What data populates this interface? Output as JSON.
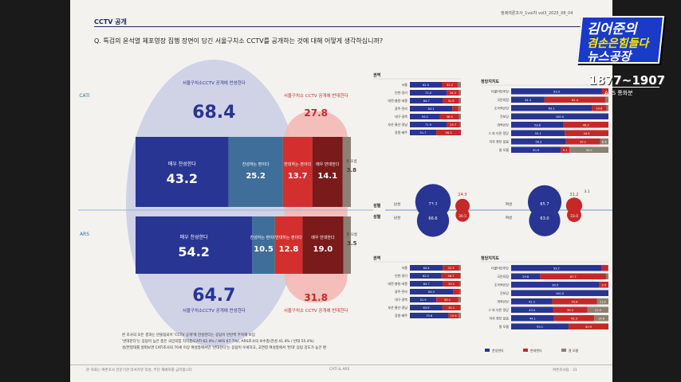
{
  "header": {
    "title": "CCTV 공개",
    "right_text": "정례여론조사_1vol차   vol3_2025_08_04",
    "question": "Q. 특검의 윤석열 체포영장 집행 장면이 담긴 서울구치소 CCTV를 공개하는 것에 대해 어떻게 생각하십니까?"
  },
  "footer": {
    "left": "본 자료는 여론조사 전문기관 리서치뷰 작성, 무단 재배포를 금지합니다",
    "mid": "CATI & ARS",
    "right": "여론조사팀  ·  31"
  },
  "notes": [
    "본 조사의 모든 결과는 반올림되어 'CCTV 공개'에 찬성한다는 응답이 반반씩 주목해 보임",
    "'반대한다'는 응답이 높은 층은 국민의힘 지지층(CATI 62.4% / ARS 67.7%), ARS조사의 보수층(찬성 41.4% / 반대 55.4%)",
    "성/연령대를 살펴보면 CATI조사의 70세 이상 여성층에서만 '반대한다'는 응답이 우세하고, 고연령 여성층에서 '반대' 응답 강도가 높은 편"
  ],
  "logo": {
    "line1": "김어준의",
    "line2": "겸손은힘들다",
    "line3": "뉴스공장",
    "years": "1877~1907",
    "sub": "ARS 통화분"
  },
  "chart_data": [
    {
      "type": "bar",
      "title": "CCTV 공개 찬반 (CATI / ARS)",
      "side_labels": {
        "cati": "CATI",
        "ars": "ARS"
      },
      "summary": {
        "cati_support": {
          "label": "서울구치소CCTV 공개에 찬성한다",
          "value": 68.4
        },
        "cati_oppose": {
          "label": "서울구치소 CCTV 공개에 반대한다",
          "value": 27.8
        },
        "ars_support": {
          "label": "서울구치소CCTV 공개에 찬성한다",
          "value": 64.7
        },
        "ars_oppose": {
          "label": "서울구치소 CCTV 공개에 반대한다",
          "value": 31.8
        }
      },
      "categories": [
        "매우 찬성한다",
        "찬성하는 편이다",
        "반대하는 편이다",
        "매우 반대한다",
        "잘 모름"
      ],
      "series": [
        {
          "name": "CATI",
          "values": [
            43.2,
            25.2,
            13.7,
            14.1,
            3.8
          ]
        },
        {
          "name": "ARS",
          "values": [
            54.2,
            10.5,
            12.8,
            19.0,
            3.5
          ]
        }
      ],
      "colors": [
        "#283593",
        "#3f6e9a",
        "#d32f2f",
        "#7b1a1a",
        "#8d7f72"
      ]
    },
    {
      "type": "bar",
      "title": "성별",
      "label": "성별",
      "groups": [
        {
          "name": "남성",
          "cati": [
            73.2,
            24.3
          ],
          "ars": [
            66.6,
            30.5
          ]
        },
        {
          "name": "여성",
          "cati": [
            65.7,
            31.2,
            3.1
          ],
          "ars": [
            63.0,
            33.0
          ]
        }
      ]
    },
    {
      "type": "bar",
      "title": "권역 (CATI)",
      "label": "권역",
      "categories": [
        "서울",
        "인천·경기",
        "대전·충청·세종",
        "광주·전라",
        "대구·경북",
        "부산·울산·경남",
        "강원·제주"
      ],
      "series": [
        {
          "name": "찬성",
          "values": [
            62.5,
            72.0,
            64.7,
            83.1,
            59.2,
            71.9,
            51.7
          ]
        },
        {
          "name": "반대",
          "values": [
            31.2,
            24.3,
            31.8,
            11.8,
            36.9,
            25.7,
            48.3
          ]
        },
        {
          "name": "잘 모름",
          "values": [
            6.3,
            3.7,
            3.5,
            5.2,
            3.9,
            2.4,
            0.0
          ]
        }
      ]
    },
    {
      "type": "bar",
      "title": "정당지지도 (CATI)",
      "label": "정당지지도",
      "categories": [
        "더불어민주당",
        "국민의힘",
        "조국혁신당",
        "진보당",
        "개혁신당",
        "그 외 다른 정당",
        "지지 정당 없음",
        "잘 모름"
      ],
      "series": [
        {
          "name": "찬성",
          "values": [
            93.4,
            34.3,
            83.1,
            100.0,
            53.8,
            55.1,
            56.3,
            50.9
          ]
        },
        {
          "name": "반대",
          "values": [
            6.6,
            62.4,
            14.8,
            0.0,
            46.2,
            44.9,
            35.1,
            9.1
          ]
        },
        {
          "name": "잘 모름",
          "values": [
            0.0,
            3.3,
            2.1,
            0.0,
            0.0,
            0.0,
            8.6,
            40.0
          ]
        }
      ]
    },
    {
      "type": "bar",
      "title": "권역 (ARS)",
      "label": "권역",
      "categories": [
        "서울",
        "인천·경기",
        "대전·충청·세종",
        "광주·전라",
        "대구·경북",
        "부산·울산·경남",
        "강원·제주"
      ],
      "series": [
        {
          "name": "찬성",
          "values": [
            64.4,
            62.0,
            64.7,
            84.5,
            51.9,
            63.9,
            75.6
          ]
        },
        {
          "name": "반대",
          "values": [
            32.3,
            36.7,
            33.1,
            13.5,
            43.1,
            35.1,
            19.6
          ]
        },
        {
          "name": "잘 모름",
          "values": [
            3.3,
            1.3,
            2.2,
            2.0,
            5.0,
            1.0,
            4.8
          ]
        }
      ]
    },
    {
      "type": "bar",
      "title": "정당지지도 (ARS)",
      "label": "정당지지도",
      "categories": [
        "더불어민주당",
        "국민의힘",
        "조국혁신당",
        "진보당",
        "개혁신당",
        "그 외 다른 정당",
        "지지 정당 없음",
        "잘 모름"
      ],
      "series": [
        {
          "name": "찬성",
          "values": [
            93.2,
            29.8,
            90.5,
            100.0,
            42.3,
            43.0,
            44.1,
            59.1
          ]
        },
        {
          "name": "반대",
          "values": [
            6.5,
            67.7,
            9.5,
            0.0,
            45.8,
            35.5,
            41.3,
            40.9
          ]
        },
        {
          "name": "잘 모름",
          "values": [
            0.3,
            2.5,
            0.0,
            0.0,
            11.9,
            21.5,
            14.6,
            0.0
          ]
        }
      ],
      "legend": [
        "찬성한다",
        "반대한다",
        "잘 모름"
      ]
    }
  ]
}
